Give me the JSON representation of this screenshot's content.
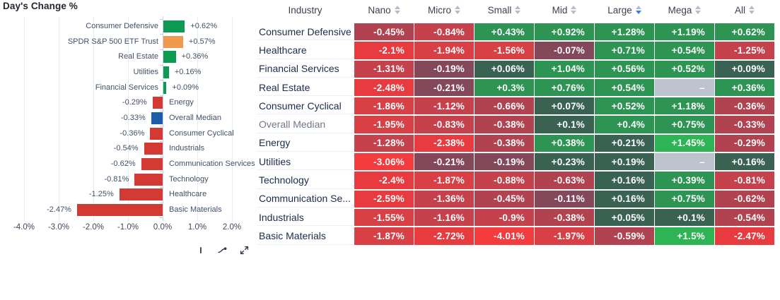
{
  "chart_data": [
    {
      "type": "bar",
      "orientation": "horizontal",
      "title": "Day's Change %",
      "categories": [
        "Consumer Defensive",
        "SPDR S&P 500 ETF Trust",
        "Real Estate",
        "Utilities",
        "Financial Services",
        "Energy",
        "Overall Median",
        "Consumer Cyclical",
        "Industrials",
        "Communication Services",
        "Technology",
        "Healthcare",
        "Basic Materials"
      ],
      "values": [
        0.62,
        0.57,
        0.36,
        0.16,
        0.09,
        -0.29,
        -0.33,
        -0.36,
        -0.54,
        -0.62,
        -0.81,
        -1.25,
        -2.47
      ],
      "value_labels": [
        "+0.62%",
        "+0.57%",
        "+0.36%",
        "+0.16%",
        "+0.09%",
        "-0.29%",
        "-0.33%",
        "-0.36%",
        "-0.54%",
        "-0.62%",
        "-0.81%",
        "-1.25%",
        "-2.47%"
      ],
      "bar_colors": [
        "#0d9b54",
        "#f09a4d",
        "#0d9b54",
        "#0d9b54",
        "#0d9b54",
        "#d23a33",
        "#1d5da8",
        "#d23a33",
        "#d23a33",
        "#d23a33",
        "#d23a33",
        "#d23a33",
        "#d23a33"
      ],
      "xlabel": "",
      "ylabel": "",
      "x_ticks": [
        "-4.0%",
        "-3.0%",
        "-2.0%",
        "-1.0%",
        "0.0%",
        "1.0%",
        "2.0%"
      ],
      "xlim": [
        -4.7,
        2.7
      ],
      "grid": "vertical-only"
    },
    {
      "type": "heatmap",
      "columns": [
        "Industry",
        "Nano",
        "Micro",
        "Small",
        "Mid",
        "Large",
        "Mega",
        "All"
      ],
      "sort": {
        "column": "Large",
        "direction": "desc"
      },
      "no_data_symbol": "–",
      "rows": [
        {
          "label": "Consumer Defensive",
          "muted": false,
          "values": [
            -0.45,
            -0.84,
            0.43,
            0.92,
            1.28,
            1.19,
            0.62
          ],
          "display": [
            "-0.45%",
            "-0.84%",
            "+0.43%",
            "+0.92%",
            "+1.28%",
            "+1.19%",
            "+0.62%"
          ]
        },
        {
          "label": "Healthcare",
          "muted": false,
          "values": [
            -2.1,
            -1.94,
            -1.56,
            -0.07,
            0.71,
            0.54,
            -1.25
          ],
          "display": [
            "-2.1%",
            "-1.94%",
            "-1.56%",
            "-0.07%",
            "+0.71%",
            "+0.54%",
            "-1.25%"
          ]
        },
        {
          "label": "Financial Services",
          "muted": false,
          "values": [
            -1.31,
            -0.19,
            0.06,
            1.04,
            0.56,
            0.52,
            0.09
          ],
          "display": [
            "-1.31%",
            "-0.19%",
            "+0.06%",
            "+1.04%",
            "+0.56%",
            "+0.52%",
            "+0.09%"
          ]
        },
        {
          "label": "Real Estate",
          "muted": false,
          "values": [
            -2.48,
            -0.21,
            0.3,
            0.76,
            0.54,
            null,
            0.36
          ],
          "display": [
            "-2.48%",
            "-0.21%",
            "+0.3%",
            "+0.76%",
            "+0.54%",
            "–",
            "+0.36%"
          ]
        },
        {
          "label": "Consumer Cyclical",
          "muted": false,
          "values": [
            -1.86,
            -1.12,
            -0.66,
            0.07,
            0.52,
            1.18,
            -0.36
          ],
          "display": [
            "-1.86%",
            "-1.12%",
            "-0.66%",
            "+0.07%",
            "+0.52%",
            "+1.18%",
            "-0.36%"
          ]
        },
        {
          "label": "Overall Median",
          "muted": true,
          "values": [
            -1.95,
            -0.83,
            -0.38,
            0.1,
            0.4,
            0.75,
            -0.33
          ],
          "display": [
            "-1.95%",
            "-0.83%",
            "-0.38%",
            "+0.1%",
            "+0.4%",
            "+0.75%",
            "-0.33%"
          ]
        },
        {
          "label": "Energy",
          "muted": false,
          "values": [
            -1.28,
            -2.38,
            -0.38,
            0.38,
            0.21,
            1.45,
            -0.29
          ],
          "display": [
            "-1.28%",
            "-2.38%",
            "-0.38%",
            "+0.38%",
            "+0.21%",
            "+1.45%",
            "-0.29%"
          ]
        },
        {
          "label": "Utilities",
          "muted": false,
          "values": [
            -3.06,
            -0.21,
            -0.19,
            0.23,
            0.19,
            null,
            0.16
          ],
          "display": [
            "-3.06%",
            "-0.21%",
            "-0.19%",
            "+0.23%",
            "+0.19%",
            "–",
            "+0.16%"
          ]
        },
        {
          "label": "Technology",
          "muted": false,
          "values": [
            -2.4,
            -1.87,
            -0.88,
            -0.63,
            0.16,
            0.39,
            -0.81
          ],
          "display": [
            "-2.4%",
            "-1.87%",
            "-0.88%",
            "-0.63%",
            "+0.16%",
            "+0.39%",
            "-0.81%"
          ]
        },
        {
          "label": "Communication Se...",
          "muted": false,
          "values": [
            -2.59,
            -1.36,
            -0.45,
            -0.11,
            0.16,
            0.75,
            -0.62
          ],
          "display": [
            "-2.59%",
            "-1.36%",
            "-0.45%",
            "-0.11%",
            "+0.16%",
            "+0.75%",
            "-0.62%"
          ]
        },
        {
          "label": "Industrials",
          "muted": false,
          "values": [
            -1.55,
            -1.16,
            -0.9,
            -0.38,
            0.05,
            0.1,
            -0.54
          ],
          "display": [
            "-1.55%",
            "-1.16%",
            "-0.9%",
            "-0.38%",
            "+0.05%",
            "+0.1%",
            "-0.54%"
          ]
        },
        {
          "label": "Basic Materials",
          "muted": false,
          "values": [
            -1.87,
            -2.72,
            -4.01,
            -1.97,
            -0.59,
            1.5,
            -2.47
          ],
          "display": [
            "-1.87%",
            "-2.72%",
            "-4.01%",
            "-1.97%",
            "-0.59%",
            "+1.5%",
            "-2.47%"
          ]
        }
      ]
    }
  ],
  "toolbar": {
    "icons": [
      "bar-tool-icon",
      "line-chart-icon",
      "expand-icon"
    ]
  },
  "colors": {
    "positive_bar": "#0d9b54",
    "benchmark_bar": "#f09a4d",
    "negative_bar": "#d23a33",
    "median_bar": "#1d5da8",
    "no_data_cell": "#bcc3ce",
    "sort_active": "#3179f6",
    "sort_inactive": "#b3bccb",
    "heatmap_scale": [
      [
        1.42,
        "#2eb454"
      ],
      [
        0.27,
        "#2e9454"
      ],
      [
        0.045,
        "#3a6253"
      ],
      [
        -0.045,
        "#5d5a66"
      ],
      [
        -0.27,
        "#83485a"
      ],
      [
        -0.75,
        "#b0434f"
      ],
      [
        -1.45,
        "#c5414c"
      ],
      [
        -2.05,
        "#d84046"
      ],
      [
        -2.9,
        "#e83b40"
      ],
      [
        -99,
        "#f43b3e"
      ]
    ]
  }
}
